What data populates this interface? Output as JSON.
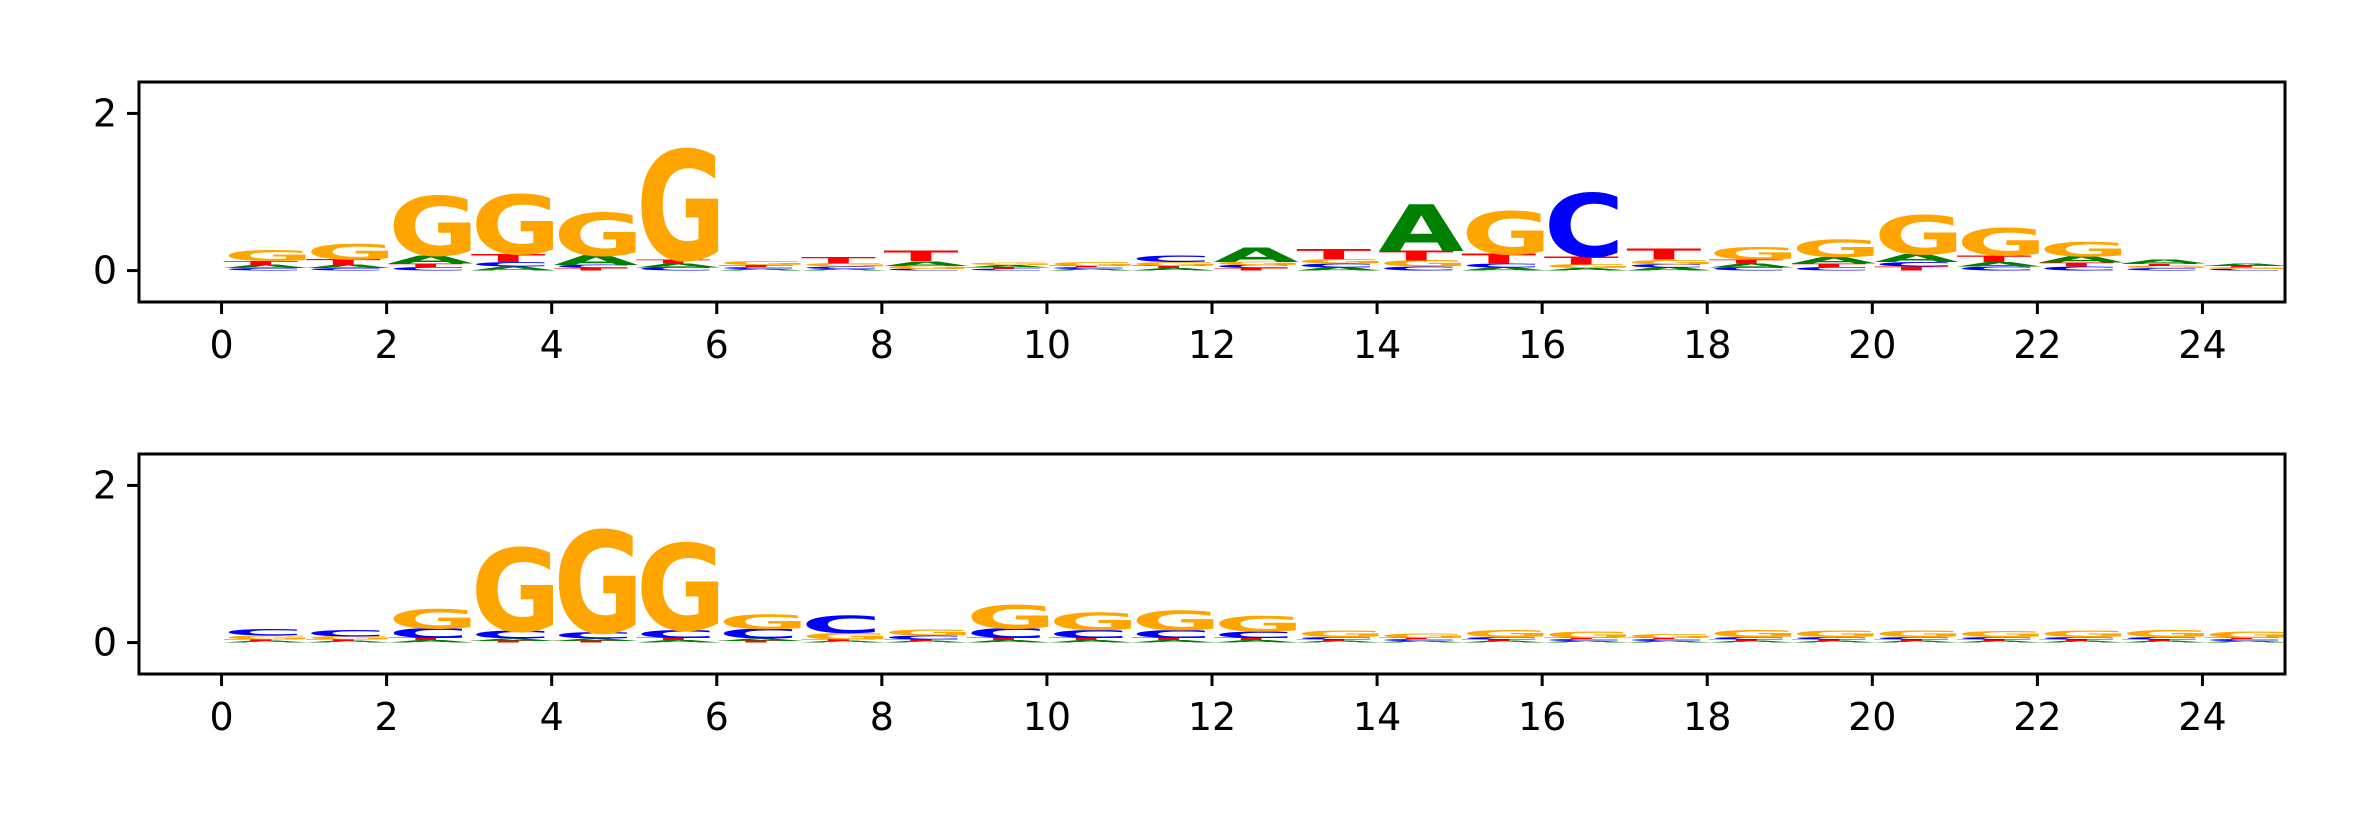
{
  "colors": {
    "A": "#008000",
    "C": "#0000ff",
    "G": "#ffa500",
    "T": "#ff0000"
  },
  "chart_data": [
    {
      "type": "sequence-logo",
      "alphabet": [
        "A",
        "C",
        "G",
        "T"
      ],
      "positions": [
        0,
        1,
        2,
        3,
        4,
        5,
        6,
        7,
        8,
        9,
        10,
        11,
        12,
        13,
        14,
        15,
        16,
        17,
        18,
        19,
        20,
        21,
        22,
        23,
        24
      ],
      "xticks": [
        "0",
        "2",
        "4",
        "6",
        "8",
        "10",
        "12",
        "14",
        "16",
        "18",
        "20",
        "22",
        "24"
      ],
      "xtick_values": [
        0,
        2,
        4,
        6,
        8,
        10,
        12,
        14,
        16,
        18,
        20,
        22,
        24
      ],
      "yticks": [
        "0",
        "2"
      ],
      "ytick_values": [
        0,
        2
      ],
      "xlim": [
        -1,
        25
      ],
      "ylim": [
        -0.4,
        2.4
      ],
      "title": "",
      "xlabel": "",
      "ylabel": "",
      "heights": [
        {
          "A": 0.04,
          "C": 0.03,
          "G": 0.14,
          "T": 0.05
        },
        {
          "A": 0.04,
          "C": 0.03,
          "G": 0.2,
          "T": 0.07
        },
        {
          "A": 0.1,
          "C": 0.04,
          "G": 0.75,
          "T": 0.05
        },
        {
          "A": 0.05,
          "C": 0.06,
          "G": 0.75,
          "T": 0.1
        },
        {
          "A": 0.12,
          "C": 0.04,
          "G": 0.55,
          "T": 0.03
        },
        {
          "A": 0.05,
          "C": 0.04,
          "G": 1.4,
          "T": 0.05
        },
        {
          "A": 0.02,
          "C": 0.02,
          "G": 0.05,
          "T": 0.03
        },
        {
          "A": 0.02,
          "C": 0.03,
          "G": 0.04,
          "T": 0.08
        },
        {
          "A": 0.06,
          "C": 0.02,
          "G": 0.04,
          "T": 0.13
        },
        {
          "A": 0.03,
          "C": 0.02,
          "G": 0.03,
          "T": 0.02
        },
        {
          "A": 0.02,
          "C": 0.02,
          "G": 0.05,
          "T": 0.02
        },
        {
          "A": 0.03,
          "C": 0.08,
          "G": 0.05,
          "T": 0.03
        },
        {
          "A": 0.18,
          "C": 0.04,
          "G": 0.04,
          "T": 0.03
        },
        {
          "A": 0.04,
          "C": 0.05,
          "G": 0.06,
          "T": 0.12
        },
        {
          "A": 0.6,
          "C": 0.05,
          "G": 0.08,
          "T": 0.12
        },
        {
          "A": 0.04,
          "C": 0.05,
          "G": 0.55,
          "T": 0.12
        },
        {
          "A": 0.03,
          "C": 0.8,
          "G": 0.05,
          "T": 0.1
        },
        {
          "A": 0.04,
          "C": 0.04,
          "G": 0.06,
          "T": 0.14
        },
        {
          "A": 0.05,
          "C": 0.04,
          "G": 0.16,
          "T": 0.05
        },
        {
          "A": 0.08,
          "C": 0.04,
          "G": 0.22,
          "T": 0.05
        },
        {
          "A": 0.1,
          "C": 0.06,
          "G": 0.5,
          "T": 0.05
        },
        {
          "A": 0.06,
          "C": 0.05,
          "G": 0.35,
          "T": 0.08
        },
        {
          "A": 0.08,
          "C": 0.05,
          "G": 0.18,
          "T": 0.05
        },
        {
          "A": 0.05,
          "C": 0.03,
          "G": 0.03,
          "T": 0.03
        },
        {
          "A": 0.03,
          "C": 0.02,
          "G": 0.02,
          "T": 0.02
        }
      ]
    },
    {
      "type": "sequence-logo",
      "alphabet": [
        "A",
        "C",
        "G",
        "T"
      ],
      "positions": [
        0,
        1,
        2,
        3,
        4,
        5,
        6,
        7,
        8,
        9,
        10,
        11,
        12,
        13,
        14,
        15,
        16,
        17,
        18,
        19,
        20,
        21,
        22,
        23,
        24
      ],
      "xticks": [
        "0",
        "2",
        "4",
        "6",
        "8",
        "10",
        "12",
        "14",
        "16",
        "18",
        "20",
        "22",
        "24"
      ],
      "xtick_values": [
        0,
        2,
        4,
        6,
        8,
        10,
        12,
        14,
        16,
        18,
        20,
        22,
        24
      ],
      "yticks": [
        "0",
        "2"
      ],
      "ytick_values": [
        0,
        2
      ],
      "xlim": [
        -1,
        25
      ],
      "ylim": [
        -0.4,
        2.4
      ],
      "title": "",
      "xlabel": "",
      "ylabel": "",
      "heights": [
        {
          "A": 0.02,
          "C": 0.08,
          "G": 0.05,
          "T": 0.02
        },
        {
          "A": 0.02,
          "C": 0.08,
          "G": 0.04,
          "T": 0.02
        },
        {
          "A": 0.03,
          "C": 0.12,
          "G": 0.25,
          "T": 0.03
        },
        {
          "A": 0.03,
          "C": 0.1,
          "G": 1.05,
          "T": 0.02
        },
        {
          "A": 0.03,
          "C": 0.08,
          "G": 1.3,
          "T": 0.02
        },
        {
          "A": 0.03,
          "C": 0.1,
          "G": 1.1,
          "T": 0.03
        },
        {
          "A": 0.03,
          "C": 0.12,
          "G": 0.18,
          "T": 0.02
        },
        {
          "A": 0.02,
          "C": 0.22,
          "G": 0.08,
          "T": 0.02
        },
        {
          "A": 0.02,
          "C": 0.05,
          "G": 0.07,
          "T": 0.02
        },
        {
          "A": 0.03,
          "C": 0.12,
          "G": 0.3,
          "T": 0.03
        },
        {
          "A": 0.03,
          "C": 0.1,
          "G": 0.22,
          "T": 0.03
        },
        {
          "A": 0.03,
          "C": 0.1,
          "G": 0.25,
          "T": 0.03
        },
        {
          "A": 0.03,
          "C": 0.08,
          "G": 0.2,
          "T": 0.03
        },
        {
          "A": 0.02,
          "C": 0.03,
          "G": 0.08,
          "T": 0.02
        },
        {
          "A": 0.02,
          "C": 0.02,
          "G": 0.06,
          "T": 0.02
        },
        {
          "A": 0.02,
          "C": 0.03,
          "G": 0.09,
          "T": 0.02
        },
        {
          "A": 0.02,
          "C": 0.02,
          "G": 0.08,
          "T": 0.02
        },
        {
          "A": 0.02,
          "C": 0.02,
          "G": 0.05,
          "T": 0.02
        },
        {
          "A": 0.02,
          "C": 0.03,
          "G": 0.09,
          "T": 0.02
        },
        {
          "A": 0.02,
          "C": 0.03,
          "G": 0.08,
          "T": 0.02
        },
        {
          "A": 0.02,
          "C": 0.03,
          "G": 0.08,
          "T": 0.02
        },
        {
          "A": 0.02,
          "C": 0.03,
          "G": 0.07,
          "T": 0.02
        },
        {
          "A": 0.02,
          "C": 0.03,
          "G": 0.08,
          "T": 0.02
        },
        {
          "A": 0.02,
          "C": 0.03,
          "G": 0.09,
          "T": 0.02
        },
        {
          "A": 0.02,
          "C": 0.02,
          "G": 0.08,
          "T": 0.02
        }
      ]
    }
  ]
}
